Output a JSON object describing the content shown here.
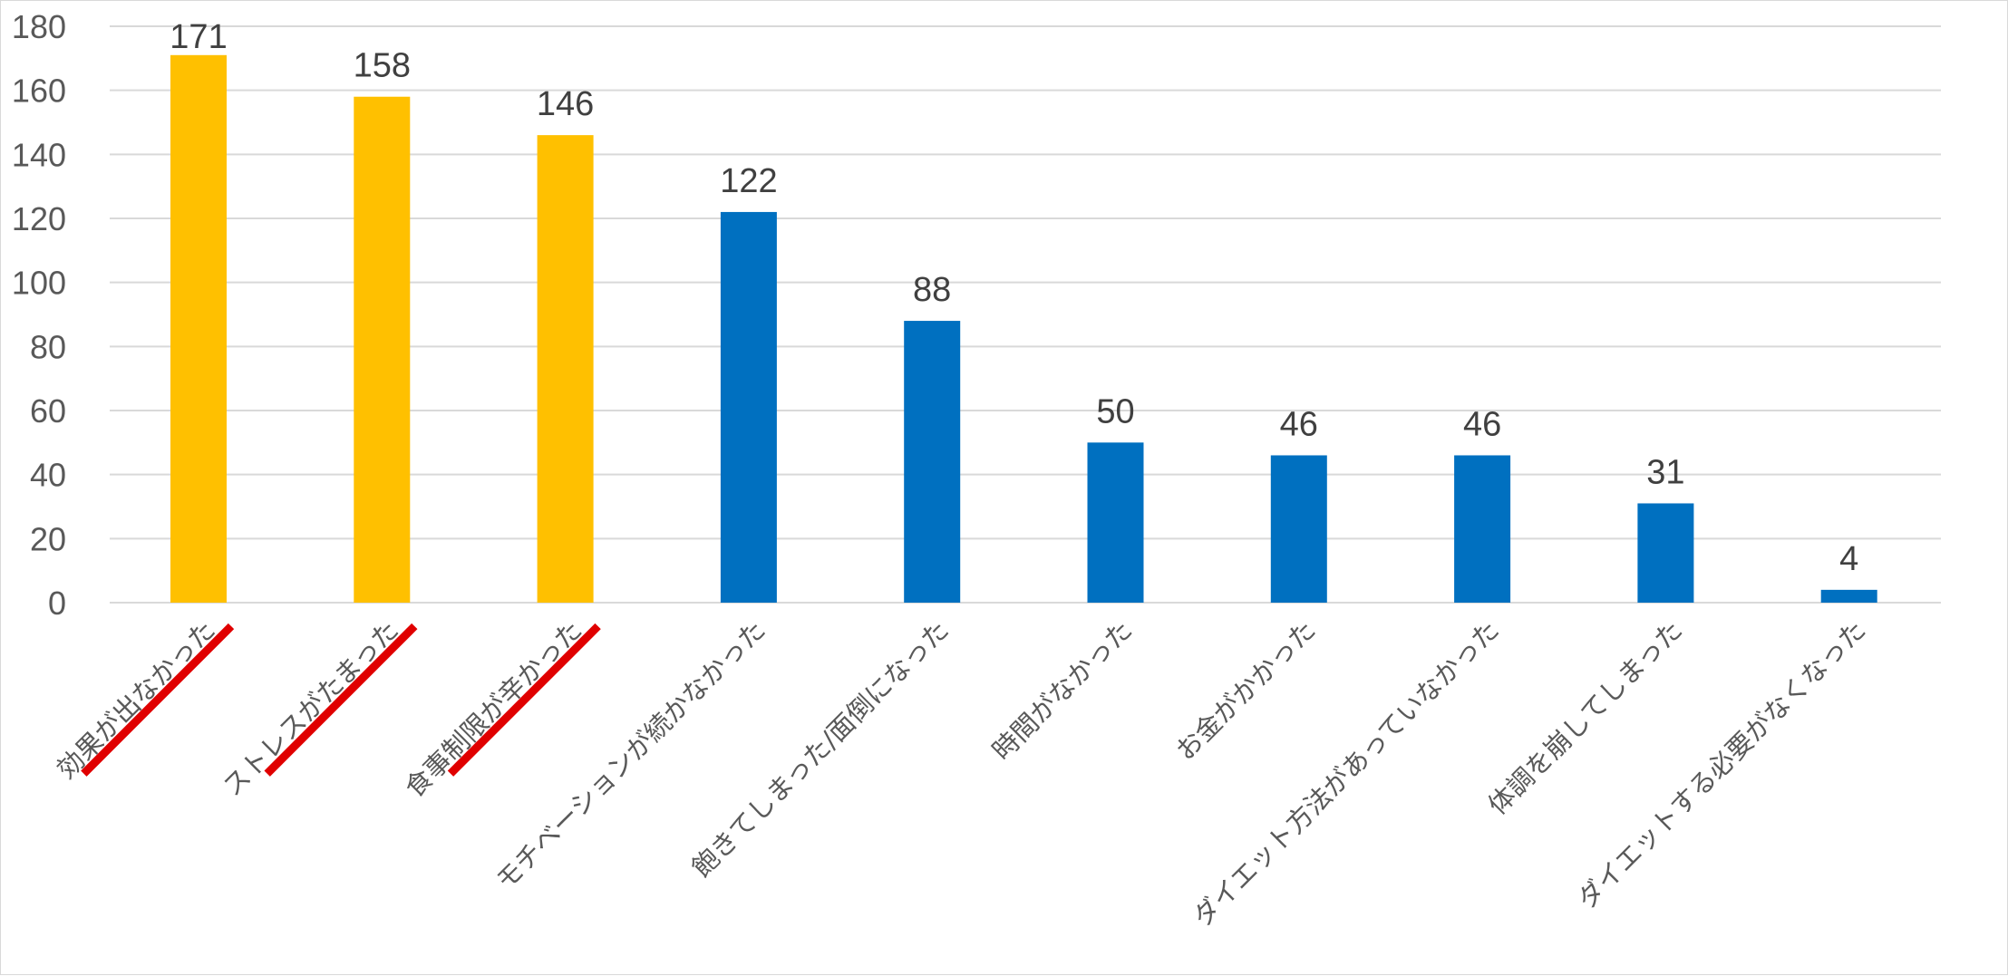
{
  "chart_data": {
    "type": "bar",
    "categories": [
      "効果が出なかった",
      "ストレスがたまった",
      "食事制限が辛かった",
      "モチベーションが続かなかった",
      "飽きてしまった/面倒になった",
      "時間がなかった",
      "お金がかかった",
      "ダイエット方法があっていなかった",
      "体調を崩してしまった",
      "ダイエットする必要がなくなった"
    ],
    "values": [
      171,
      158,
      146,
      122,
      88,
      50,
      46,
      46,
      31,
      4
    ],
    "highlighted": [
      true,
      true,
      true,
      false,
      false,
      false,
      false,
      false,
      false,
      false
    ],
    "underlined": [
      true,
      true,
      true,
      false,
      false,
      false,
      false,
      false,
      false,
      false
    ],
    "title": "",
    "xlabel": "",
    "ylabel": "",
    "ylim": [
      0,
      180
    ],
    "yticks": [
      0,
      20,
      40,
      60,
      80,
      100,
      120,
      140,
      160,
      180
    ],
    "grid": true,
    "legend": "none",
    "colors": {
      "highlight": "#FFC000",
      "normal": "#0070C0",
      "underline": "#E00000",
      "grid": "#D9D9D9"
    }
  }
}
